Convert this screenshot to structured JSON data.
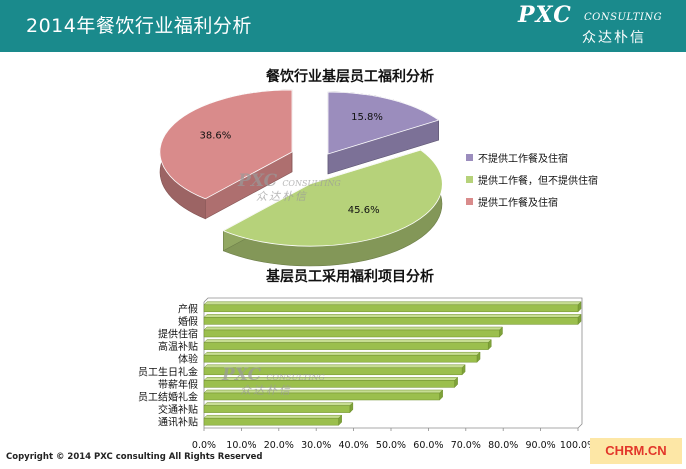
{
  "header": {
    "title": "2014年餐饮行业福利分析"
  },
  "logo": {
    "brand": "PXC",
    "tagline": "CONSULTING",
    "cn": "众达朴信"
  },
  "chart_data": [
    {
      "type": "pie",
      "title": "餐饮行业基层员工福利分析",
      "series": [
        {
          "name": "不提供工作餐及住宿",
          "value": 15.8,
          "label": "15.8%",
          "color": "#9b8dbd"
        },
        {
          "name": "提供工作餐，但不提供住宿",
          "value": 45.6,
          "label": "45.6%",
          "color": "#b6d27a"
        },
        {
          "name": "提供工作餐及住宿",
          "value": 38.6,
          "label": "38.6%",
          "color": "#d98b8b"
        }
      ],
      "legend_position": "right"
    },
    {
      "type": "bar",
      "orientation": "horizontal",
      "title": "基层员工采用福利项目分析",
      "categories": [
        "产假",
        "婚假",
        "提供住宿",
        "高温补贴",
        "体验",
        "员工生日礼金",
        "带薪年假",
        "员工结婚礼金",
        "交通补贴",
        "通讯补贴"
      ],
      "values": [
        100,
        100,
        79,
        76,
        73,
        69,
        67,
        63,
        39,
        36
      ],
      "color": "#9bbf4d",
      "xlim": [
        0,
        100
      ],
      "xticks": [
        "0.0%",
        "10.0%",
        "20.0%",
        "30.0%",
        "40.0%",
        "50.0%",
        "60.0%",
        "70.0%",
        "80.0%",
        "90.0%",
        "100.0%"
      ],
      "grid": false
    }
  ],
  "watermark": {
    "brand": "PXC",
    "tagline": "CONSULTING",
    "cn": "众达朴信"
  },
  "footer": {
    "copyright": "Copyright © 2014  PXC consulting All Rights Reserved"
  },
  "badge": {
    "text": "CHRM.CN"
  }
}
